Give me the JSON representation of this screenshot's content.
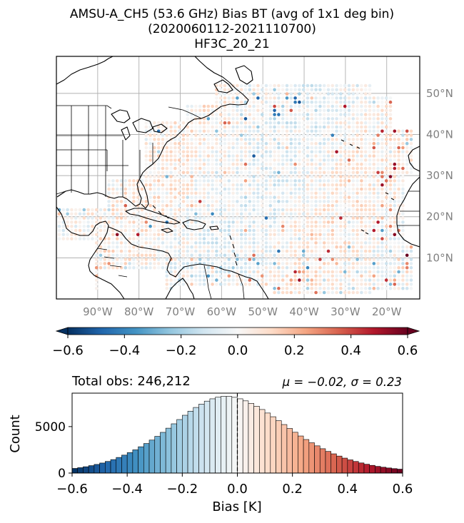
{
  "title": {
    "line1": "AMSU-A_CH5 (53.6 GHz) Bias BT (avg of 1x1 deg bin)",
    "line2": "(2020060112-2021110700)",
    "line3": "HF3C_20_21"
  },
  "map": {
    "lon_labels": [
      "90°W",
      "80°W",
      "70°W",
      "60°W",
      "50°W",
      "40°W",
      "30°W",
      "20°W"
    ],
    "lon_values": [
      -90,
      -80,
      -70,
      -60,
      -50,
      -40,
      -30,
      -20
    ],
    "lat_labels": [
      "50°N",
      "40°N",
      "30°N",
      "20°N",
      "10°N"
    ],
    "lat_values": [
      50,
      40,
      30,
      20,
      10
    ],
    "lon_range": [
      -100,
      -12
    ],
    "lat_range": [
      0,
      59
    ]
  },
  "colorbar": {
    "ticks": [
      "−0.6",
      "−0.4",
      "−0.2",
      "0.0",
      "0.2",
      "0.4",
      "0.6"
    ],
    "range": [
      -0.6,
      0.6
    ],
    "colormap": "RdBu_r"
  },
  "histogram": {
    "total_obs_label": "Total obs: 246,212",
    "stats_label": "μ = −0.02, σ = 0.23",
    "ylabel": "Count",
    "xlabel": "Bias [K]",
    "yticks": [
      "0",
      "5000"
    ],
    "xticks": [
      "−0.6",
      "−0.4",
      "−0.2",
      "0.0",
      "0.2",
      "0.4",
      "0.6"
    ]
  },
  "chart_data": {
    "type": "bar",
    "title": "",
    "xlabel": "Bias [K]",
    "ylabel": "Count",
    "xlim": [
      -0.6,
      0.6
    ],
    "ylim": [
      0,
      8600
    ],
    "bin_width": 0.02,
    "bin_centers": [
      -0.59,
      -0.57,
      -0.55,
      -0.53,
      -0.51,
      -0.49,
      -0.47,
      -0.45,
      -0.43,
      -0.41,
      -0.39,
      -0.37,
      -0.35,
      -0.33,
      -0.31,
      -0.29,
      -0.27,
      -0.25,
      -0.23,
      -0.21,
      -0.19,
      -0.17,
      -0.15,
      -0.13,
      -0.11,
      -0.09,
      -0.07,
      -0.05,
      -0.03,
      -0.01,
      0.01,
      0.03,
      0.05,
      0.07,
      0.09,
      0.11,
      0.13,
      0.15,
      0.17,
      0.19,
      0.21,
      0.23,
      0.25,
      0.27,
      0.29,
      0.31,
      0.33,
      0.35,
      0.37,
      0.39,
      0.41,
      0.43,
      0.45,
      0.47,
      0.49,
      0.51,
      0.53,
      0.55,
      0.57,
      0.59
    ],
    "values": [
      500,
      580,
      680,
      800,
      930,
      1080,
      1250,
      1450,
      1680,
      1930,
      2200,
      2500,
      2830,
      3180,
      3550,
      3950,
      4380,
      4830,
      5300,
      5760,
      6220,
      6660,
      7060,
      7420,
      7740,
      7990,
      8160,
      8250,
      8250,
      8150,
      7990,
      7770,
      7500,
      7190,
      6840,
      6460,
      6060,
      5640,
      5220,
      4800,
      4390,
      3990,
      3610,
      3260,
      2930,
      2620,
      2330,
      2070,
      1830,
      1610,
      1420,
      1250,
      1090,
      950,
      830,
      720,
      630,
      550,
      480,
      420
    ],
    "mean": -0.02,
    "std": 0.23,
    "mean_marker": 0.0
  }
}
